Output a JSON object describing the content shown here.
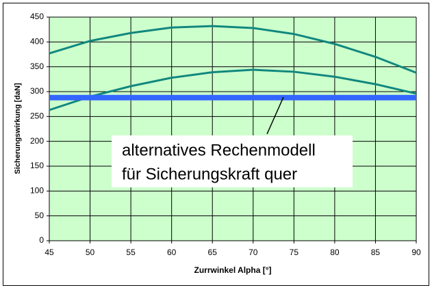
{
  "chart_data": {
    "type": "line",
    "xlabel": "Zurrwinkel Alpha [°]",
    "ylabel": "Sicherungswirkung [daN]",
    "annotation": [
      "alternatives Rechenmodell",
      "für Sicherungskraft quer"
    ],
    "x": [
      45,
      50,
      55,
      60,
      65,
      70,
      75,
      80,
      85,
      90
    ],
    "series": [
      {
        "color": "#11877f",
        "width": 3,
        "values": [
          377,
          402,
          418,
          429,
          432,
          428,
          416,
          396,
          370,
          338
        ]
      },
      {
        "color": "#11877f",
        "width": 3,
        "values": [
          263,
          290,
          311,
          328,
          339,
          344,
          340,
          330,
          315,
          296
        ]
      },
      {
        "color": "#3366ff",
        "width": 8,
        "values": [
          288,
          288,
          288,
          288,
          288,
          288,
          288,
          288,
          288,
          288
        ]
      }
    ],
    "xlim": [
      45,
      90
    ],
    "xticks": [
      45,
      50,
      55,
      60,
      65,
      70,
      75,
      80,
      85,
      90
    ],
    "ylim": [
      0,
      450
    ],
    "yticks": [
      0,
      50,
      100,
      150,
      200,
      250,
      300,
      350,
      400,
      450
    ],
    "grid": true,
    "plot_background": "#ccffcc"
  }
}
